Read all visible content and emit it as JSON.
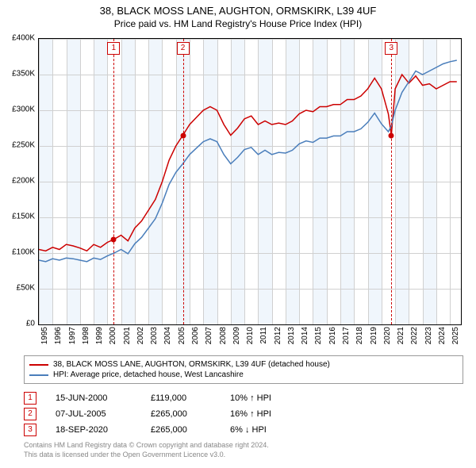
{
  "title": {
    "line1": "38, BLACK MOSS LANE, AUGHTON, ORMSKIRK, L39 4UF",
    "line2": "Price paid vs. HM Land Registry's House Price Index (HPI)"
  },
  "chart": {
    "type": "line",
    "background_color": "#ffffff",
    "grid_color": "#d0d0d0",
    "band_color": "#e6f0fa",
    "plot_border_color": "#000000",
    "ylim": [
      0,
      400000
    ],
    "ytick_step": 50000,
    "yticks": [
      "£0",
      "£50K",
      "£100K",
      "£150K",
      "£200K",
      "£250K",
      "£300K",
      "£350K",
      "£400K"
    ],
    "xlim": [
      1995,
      2025.8
    ],
    "xticks": [
      1995,
      1996,
      1997,
      1998,
      1999,
      2000,
      2001,
      2002,
      2003,
      2004,
      2005,
      2006,
      2007,
      2008,
      2009,
      2010,
      2011,
      2012,
      2013,
      2014,
      2015,
      2016,
      2017,
      2018,
      2019,
      2020,
      2021,
      2022,
      2023,
      2024,
      2025
    ],
    "label_fontsize": 10,
    "series": [
      {
        "name": "38, BLACK MOSS LANE, AUGHTON, ORMSKIRK, L39 4UF (detached house)",
        "color": "#cc0000",
        "line_width": 1.5,
        "points": [
          [
            1995.0,
            105000
          ],
          [
            1995.5,
            103000
          ],
          [
            1996.0,
            108000
          ],
          [
            1996.5,
            105000
          ],
          [
            1997.0,
            112000
          ],
          [
            1997.5,
            110000
          ],
          [
            1998.0,
            107000
          ],
          [
            1998.5,
            103000
          ],
          [
            1999.0,
            112000
          ],
          [
            1999.5,
            108000
          ],
          [
            2000.0,
            115000
          ],
          [
            2000.46,
            119000
          ],
          [
            2001.0,
            125000
          ],
          [
            2001.5,
            117000
          ],
          [
            2002.0,
            135000
          ],
          [
            2002.5,
            145000
          ],
          [
            2003.0,
            160000
          ],
          [
            2003.5,
            175000
          ],
          [
            2004.0,
            200000
          ],
          [
            2004.5,
            230000
          ],
          [
            2005.0,
            250000
          ],
          [
            2005.51,
            265000
          ],
          [
            2006.0,
            280000
          ],
          [
            2006.5,
            290000
          ],
          [
            2007.0,
            300000
          ],
          [
            2007.5,
            305000
          ],
          [
            2008.0,
            300000
          ],
          [
            2008.5,
            280000
          ],
          [
            2009.0,
            265000
          ],
          [
            2009.5,
            275000
          ],
          [
            2010.0,
            288000
          ],
          [
            2010.5,
            292000
          ],
          [
            2011.0,
            280000
          ],
          [
            2011.5,
            285000
          ],
          [
            2012.0,
            280000
          ],
          [
            2012.5,
            282000
          ],
          [
            2013.0,
            280000
          ],
          [
            2013.5,
            285000
          ],
          [
            2014.0,
            295000
          ],
          [
            2014.5,
            300000
          ],
          [
            2015.0,
            298000
          ],
          [
            2015.5,
            305000
          ],
          [
            2016.0,
            305000
          ],
          [
            2016.5,
            308000
          ],
          [
            2017.0,
            308000
          ],
          [
            2017.5,
            315000
          ],
          [
            2018.0,
            315000
          ],
          [
            2018.5,
            320000
          ],
          [
            2019.0,
            330000
          ],
          [
            2019.5,
            345000
          ],
          [
            2020.0,
            330000
          ],
          [
            2020.5,
            295000
          ],
          [
            2020.72,
            265000
          ],
          [
            2021.0,
            330000
          ],
          [
            2021.5,
            350000
          ],
          [
            2022.0,
            338000
          ],
          [
            2022.5,
            348000
          ],
          [
            2023.0,
            335000
          ],
          [
            2023.5,
            337000
          ],
          [
            2024.0,
            330000
          ],
          [
            2024.5,
            335000
          ],
          [
            2025.0,
            340000
          ],
          [
            2025.5,
            340000
          ]
        ]
      },
      {
        "name": "HPI: Average price, detached house, West Lancashire",
        "color": "#4a7ebb",
        "line_width": 1.5,
        "points": [
          [
            1995.0,
            90000
          ],
          [
            1995.5,
            88000
          ],
          [
            1996.0,
            92000
          ],
          [
            1996.5,
            90000
          ],
          [
            1997.0,
            93000
          ],
          [
            1997.5,
            92000
          ],
          [
            1998.0,
            90000
          ],
          [
            1998.5,
            88000
          ],
          [
            1999.0,
            93000
          ],
          [
            1999.5,
            91000
          ],
          [
            2000.0,
            96000
          ],
          [
            2000.5,
            100000
          ],
          [
            2001.0,
            105000
          ],
          [
            2001.5,
            99000
          ],
          [
            2002.0,
            113000
          ],
          [
            2002.5,
            122000
          ],
          [
            2003.0,
            135000
          ],
          [
            2003.5,
            148000
          ],
          [
            2004.0,
            170000
          ],
          [
            2004.5,
            196000
          ],
          [
            2005.0,
            213000
          ],
          [
            2005.5,
            225000
          ],
          [
            2006.0,
            238000
          ],
          [
            2006.5,
            247000
          ],
          [
            2007.0,
            256000
          ],
          [
            2007.5,
            260000
          ],
          [
            2008.0,
            256000
          ],
          [
            2008.5,
            238000
          ],
          [
            2009.0,
            225000
          ],
          [
            2009.5,
            234000
          ],
          [
            2010.0,
            245000
          ],
          [
            2010.5,
            248000
          ],
          [
            2011.0,
            238000
          ],
          [
            2011.5,
            244000
          ],
          [
            2012.0,
            238000
          ],
          [
            2012.5,
            241000
          ],
          [
            2013.0,
            240000
          ],
          [
            2013.5,
            244000
          ],
          [
            2014.0,
            253000
          ],
          [
            2014.5,
            257000
          ],
          [
            2015.0,
            255000
          ],
          [
            2015.5,
            261000
          ],
          [
            2016.0,
            261000
          ],
          [
            2016.5,
            264000
          ],
          [
            2017.0,
            264000
          ],
          [
            2017.5,
            270000
          ],
          [
            2018.0,
            270000
          ],
          [
            2018.5,
            274000
          ],
          [
            2019.0,
            283000
          ],
          [
            2019.5,
            296000
          ],
          [
            2020.0,
            281000
          ],
          [
            2020.5,
            270000
          ],
          [
            2020.72,
            278000
          ],
          [
            2021.0,
            300000
          ],
          [
            2021.5,
            325000
          ],
          [
            2022.0,
            340000
          ],
          [
            2022.5,
            355000
          ],
          [
            2023.0,
            350000
          ],
          [
            2023.5,
            355000
          ],
          [
            2024.0,
            360000
          ],
          [
            2024.5,
            365000
          ],
          [
            2025.0,
            368000
          ],
          [
            2025.5,
            370000
          ]
        ]
      }
    ],
    "sale_markers": [
      {
        "label": "1",
        "x": 2000.46,
        "y": 119000
      },
      {
        "label": "2",
        "x": 2005.51,
        "y": 265000
      },
      {
        "label": "3",
        "x": 2020.72,
        "y": 265000
      }
    ],
    "sale_marker_color": "#cc0000"
  },
  "legend": {
    "items": [
      {
        "color": "#cc0000",
        "label": "38, BLACK MOSS LANE, AUGHTON, ORMSKIRK, L39 4UF (detached house)"
      },
      {
        "color": "#4a7ebb",
        "label": "HPI: Average price, detached house, West Lancashire"
      }
    ]
  },
  "sale_table": [
    {
      "num": "1",
      "date": "15-JUN-2000",
      "price": "£119,000",
      "pct": "10% ↑ HPI"
    },
    {
      "num": "2",
      "date": "07-JUL-2005",
      "price": "£265,000",
      "pct": "16% ↑ HPI"
    },
    {
      "num": "3",
      "date": "18-SEP-2020",
      "price": "£265,000",
      "pct": "6% ↓ HPI"
    }
  ],
  "footer": {
    "line1": "Contains HM Land Registry data © Crown copyright and database right 2024.",
    "line2": "This data is licensed under the Open Government Licence v3.0."
  }
}
